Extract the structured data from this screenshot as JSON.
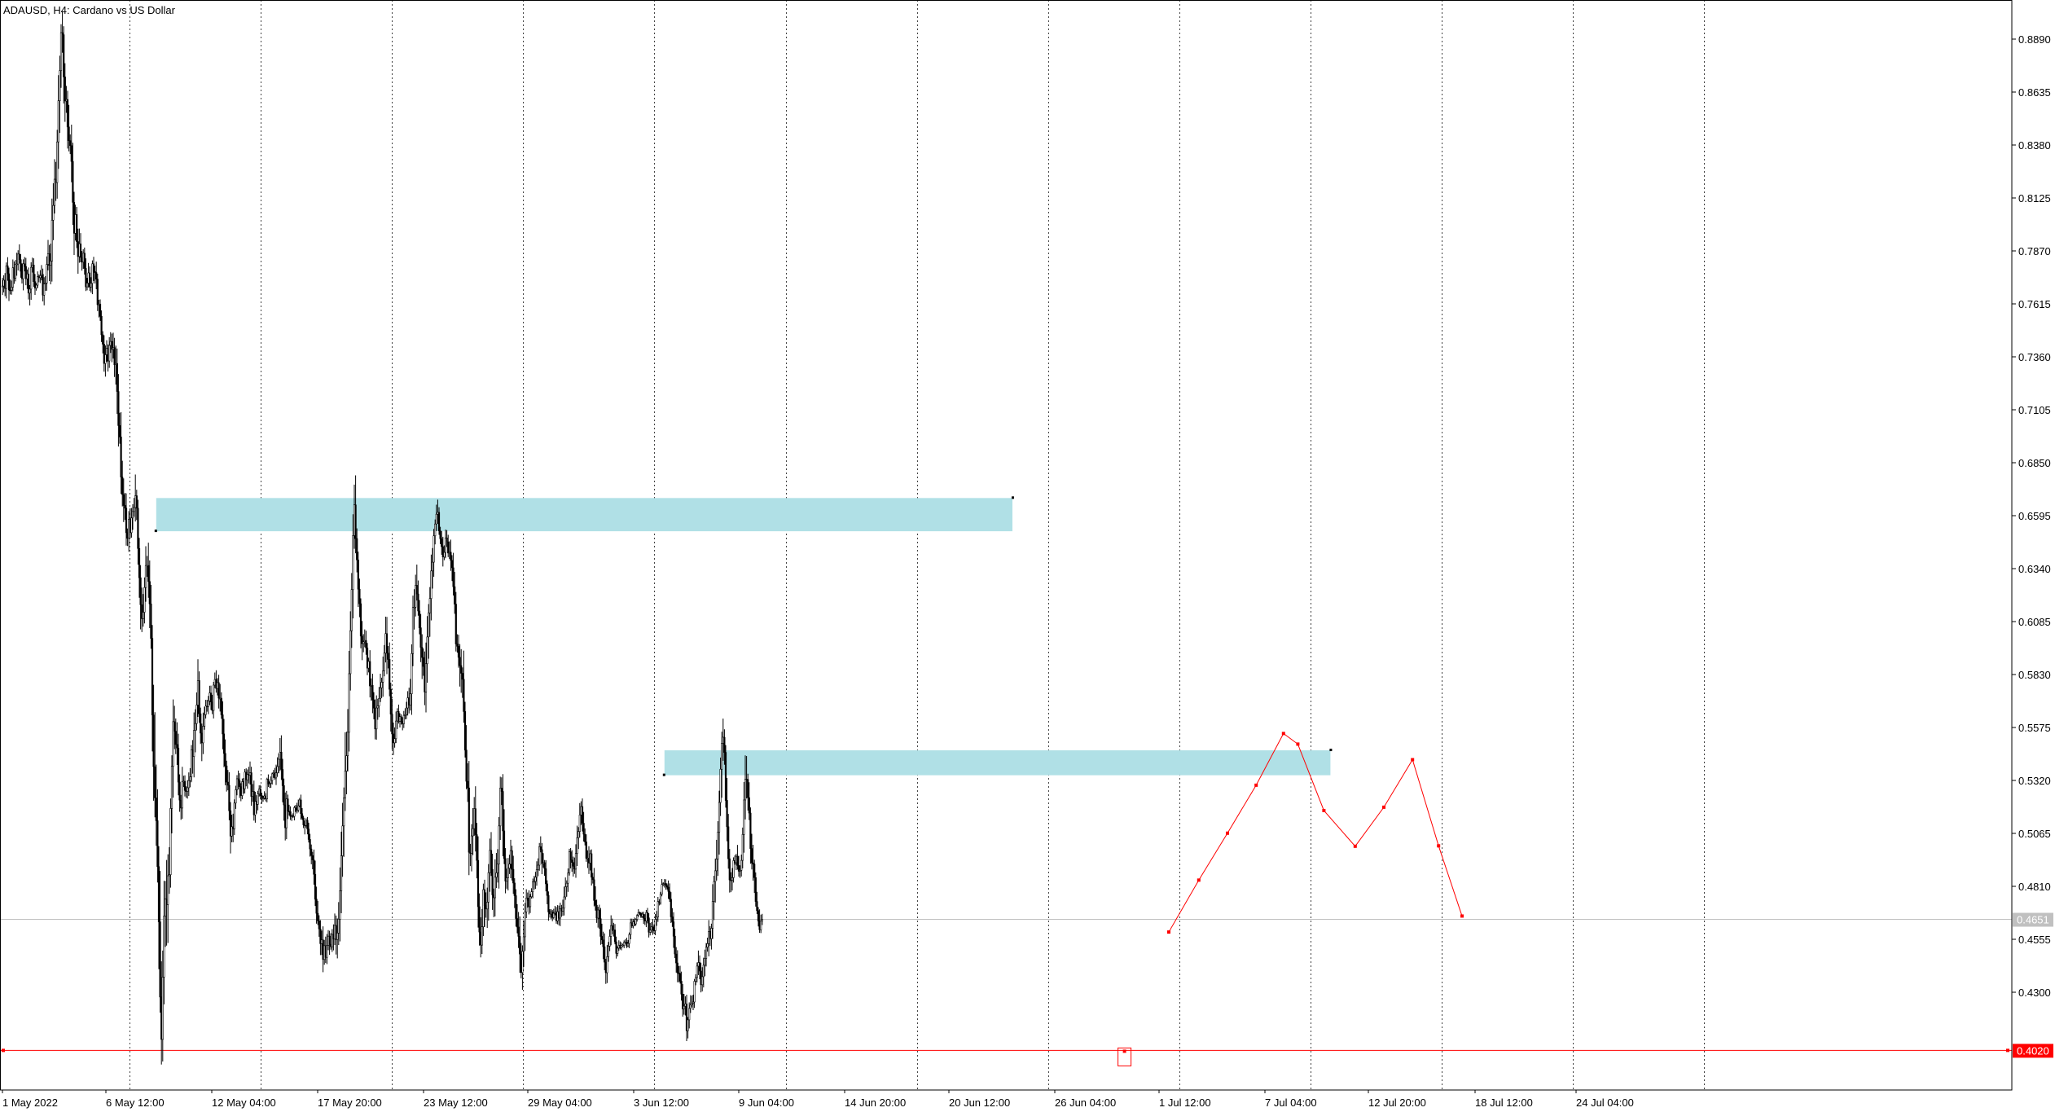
{
  "chart_data": {
    "type": "candlestick",
    "title": "ADAUSD, H4:  Cardano vs US Dollar",
    "ylim": [
      0.3805,
      0.9035
    ],
    "y_ticks": [
      "0.8890",
      "0.8635",
      "0.8380",
      "0.8125",
      "0.7870",
      "0.7615",
      "0.7360",
      "0.7105",
      "0.6850",
      "0.6595",
      "0.6340",
      "0.6085",
      "0.5830",
      "0.5575",
      "0.5320",
      "0.5065",
      "0.4810",
      "0.4555",
      "0.4300"
    ],
    "x_ticks": [
      "1 May 2022",
      "6 May 12:00",
      "12 May 04:00",
      "17 May 20:00",
      "23 May 12:00",
      "29 May 04:00",
      "3 Jun 12:00",
      "9 Jun 04:00",
      "14 Jun 20:00",
      "20 Jun 12:00",
      "26 Jun 04:00",
      "1 Jul 12:00",
      "7 Jul 04:00",
      "12 Jul 20:00",
      "18 Jul 12:00",
      "24 Jul 04:00"
    ],
    "grid": "vertical dotted",
    "current_price": {
      "label": "0.4651",
      "value": 0.4651,
      "color": "#c0c0c0"
    },
    "support_line": {
      "label": "0.4020",
      "value": 0.402,
      "color": "#ff0000"
    },
    "zones": [
      {
        "name": "upper-supply-zone",
        "from_bar": 118,
        "to_bar": 775,
        "top": 0.668,
        "bottom": 0.652,
        "color": "#b0e0e6"
      },
      {
        "name": "lower-supply-zone",
        "from_bar": 508,
        "to_bar": 1019,
        "top": 0.5465,
        "bottom": 0.5345,
        "color": "#b0e0e6"
      }
    ],
    "zigzag": {
      "color": "#ff0000",
      "points": [
        [
          895,
          0.459
        ],
        [
          918,
          0.484
        ],
        [
          940,
          0.5066
        ],
        [
          962,
          0.5297
        ],
        [
          983,
          0.5546
        ],
        [
          994,
          0.5495
        ],
        [
          1014,
          0.5175
        ],
        [
          1038,
          0.5003
        ],
        [
          1060,
          0.5191
        ],
        [
          1082,
          0.542
        ],
        [
          1102,
          0.5005
        ],
        [
          1120,
          0.4667
        ]
      ]
    },
    "low_marker": {
      "bar": 861,
      "value": 0.4016,
      "color": "#ff0000"
    },
    "candles_ohlc_window": 4,
    "candles": [
      0.7701,
      0.7729,
      0.7689,
      0.7798,
      0.776,
      0.7682,
      0.7681,
      0.7695,
      0.7789,
      0.7739,
      0.7806,
      0.7807,
      0.7855,
      0.7828,
      0.7772,
      0.7736,
      0.7808,
      0.7795,
      0.7736,
      0.7759,
      0.7667,
      0.7686,
      0.7791,
      0.7802,
      0.7722,
      0.7691,
      0.7705,
      0.7746,
      0.7741,
      0.7751,
      0.7757,
      0.7657,
      0.7711,
      0.7715,
      0.7805,
      0.7857,
      0.7801,
      0.7821,
      0.8018,
      0.8089,
      0.8215,
      0.8199,
      0.8395,
      0.8593,
      0.8738,
      0.8921,
      0.8911,
      0.8708,
      0.8592,
      0.8599,
      0.8467,
      0.8401,
      0.8377,
      0.8301,
      0.8104,
      0.7955,
      0.8045,
      0.7915,
      0.7843,
      0.7904,
      0.7839,
      0.7816,
      0.7859,
      0.7786,
      0.7697,
      0.7715,
      0.7764,
      0.7696,
      0.7714,
      0.7808,
      0.7771,
      0.7766,
      0.7734,
      0.7611,
      0.7614,
      0.7555,
      0.7466,
      0.7421,
      0.7328,
      0.737,
      0.7401,
      0.734,
      0.7415,
      0.7434,
      0.7396,
      0.7404,
      0.7322,
      0.7328,
      0.7193,
      0.7029,
      0.6974,
      0.6781,
      0.6697,
      0.6644,
      0.6631,
      0.6513,
      0.6486,
      0.6578,
      0.6513,
      0.6584,
      0.6615,
      0.6634,
      0.6691,
      0.6631,
      0.6437,
      0.6296,
      0.6166,
      0.6099,
      0.613,
      0.6249,
      0.6355,
      0.6355,
      0.6278,
      0.617,
      0.6004,
      0.5635,
      0.5386,
      0.5236,
      0.5126,
      0.4905,
      0.4639,
      0.4277,
      0.4073,
      0.4373,
      0.4667,
      0.4749,
      0.4722,
      0.4861,
      0.4866,
      0.5185,
      0.5388,
      0.5603,
      0.5557,
      0.5493,
      0.5476,
      0.5312,
      0.5225,
      0.5187,
      0.5315,
      0.5316,
      0.5272,
      0.5267,
      0.5285,
      0.5319,
      0.5337,
      0.5468,
      0.5435,
      0.5561,
      0.5594,
      0.5683,
      0.5801,
      0.5641,
      0.5548,
      0.5501,
      0.5581,
      0.5637,
      0.5678,
      0.5675,
      0.5703,
      0.5741,
      0.5698,
      0.5657,
      0.5779,
      0.5806,
      0.5763,
      0.5791,
      0.5716,
      0.5716,
      0.5636,
      0.5544,
      0.545,
      0.539,
      0.5312,
      0.5297,
      0.5174,
      0.5052,
      0.5097,
      0.5087,
      0.5211,
      0.5275,
      0.5328,
      0.5318,
      0.529,
      0.5247,
      0.5314,
      0.528,
      0.536,
      0.5323,
      0.5349,
      0.5345,
      0.5357,
      0.5243,
      0.5267,
      0.5154,
      0.5219,
      0.5205,
      0.5255,
      0.5279,
      0.5247,
      0.5236,
      0.5236,
      0.5245,
      0.5231,
      0.5326,
      0.5303,
      0.5306,
      0.532,
      0.5352,
      0.5356,
      0.5332,
      0.5357,
      0.5387,
      0.5422,
      0.5456,
      0.5373,
      0.5295,
      0.5202,
      0.5092,
      0.5231,
      0.5172,
      0.5169,
      0.5147,
      0.515,
      0.5147,
      0.5189,
      0.5191,
      0.5177,
      0.5198,
      0.5226,
      0.516,
      0.5139,
      0.5106,
      0.5103,
      0.5128,
      0.5086,
      0.5036,
      0.499,
      0.4958,
      0.4937,
      0.4868,
      0.4748,
      0.468,
      0.4644,
      0.4605,
      0.4534,
      0.4552,
      0.4458,
      0.4524,
      0.4468,
      0.4526,
      0.457,
      0.4531,
      0.4519,
      0.4579,
      0.4556,
      0.4622,
      0.4554,
      0.4585,
      0.4652,
      0.4788,
      0.4957,
      0.5101,
      0.5236,
      0.5365,
      0.5439,
      0.5552,
      0.5834,
      0.6041,
      0.6239,
      0.6499,
      0.6647,
      0.6485,
      0.6382,
      0.6241,
      0.6171,
      0.6015,
      0.5979,
      0.5988,
      0.5994,
      0.5958,
      0.5861,
      0.5893,
      0.5775,
      0.5778,
      0.5708,
      0.5668,
      0.5568,
      0.5669,
      0.5679,
      0.5715,
      0.5766,
      0.5793,
      0.5847,
      0.5933,
      0.6027,
      0.5933,
      0.5903,
      0.5759,
      0.5639,
      0.5544,
      0.5501,
      0.5521,
      0.5606,
      0.5652,
      0.5605,
      0.5627,
      0.5605,
      0.5593,
      0.5633,
      0.5637,
      0.5669,
      0.5718,
      0.5683,
      0.5737,
      0.5931,
      0.6153,
      0.6154,
      0.626,
      0.6218,
      0.6136,
      0.6055,
      0.5961,
      0.5912,
      0.5869,
      0.5746,
      0.5882,
      0.6011,
      0.6127,
      0.6196,
      0.6329,
      0.6371,
      0.6498,
      0.6555,
      0.6602,
      0.6611,
      0.6522,
      0.6484,
      0.6446,
      0.6396,
      0.6418,
      0.6488,
      0.6469,
      0.6415,
      0.6419,
      0.638,
      0.6344,
      0.6253,
      0.6169,
      0.5977,
      0.5966,
      0.5913,
      0.5873,
      0.5836,
      0.5807,
      0.5652,
      0.5466,
      0.5316,
      0.5284,
      0.4974,
      0.4969,
      0.5053,
      0.5088,
      0.5184,
      0.5059,
      0.4935,
      0.4712,
      0.459,
      0.4527,
      0.4615,
      0.4794,
      0.4717,
      0.4701,
      0.4734,
      0.4876,
      0.4983,
      0.4892,
      0.4769,
      0.4755,
      0.4854,
      0.4875,
      0.4917,
      0.5101,
      0.5283,
      0.5267,
      0.5077,
      0.4944,
      0.4835,
      0.4851,
      0.4897,
      0.4917,
      0.4982,
      0.4892,
      0.4826,
      0.4765,
      0.4655,
      0.4614,
      0.4569,
      0.4484,
      0.4395,
      0.4497,
      0.4567,
      0.4687,
      0.4754,
      0.4743,
      0.4712,
      0.476,
      0.4784,
      0.4832,
      0.4834,
      0.4854,
      0.4891,
      0.4912,
      0.5001,
      0.4987,
      0.4919,
      0.4924,
      0.4895,
      0.4822,
      0.4766,
      0.4687,
      0.4677,
      0.4687,
      0.466,
      0.468,
      0.4685,
      0.4644,
      0.4688,
      0.4657,
      0.4703,
      0.4691,
      0.4705,
      0.4759,
      0.4808,
      0.4825,
      0.4874,
      0.4976,
      0.4937,
      0.4925,
      0.4907,
      0.4893,
      0.4968,
      0.5044,
      0.5074,
      0.5154,
      0.5194,
      0.5114,
      0.5061,
      0.5024,
      0.4945,
      0.4946,
      0.4922,
      0.4967,
      0.4854,
      0.4842,
      0.4742,
      0.4719,
      0.4657,
      0.4696,
      0.4654,
      0.4569,
      0.4552,
      0.4519,
      0.4445,
      0.4394,
      0.4471,
      0.4522,
      0.4569,
      0.4621,
      0.4599,
      0.46,
      0.4543,
      0.4487,
      0.4512,
      0.4526,
      0.4514,
      0.4526,
      0.4527,
      0.4541,
      0.4541,
      0.4523,
      0.4535,
      0.4578,
      0.4634,
      0.4619,
      0.4639,
      0.4629,
      0.4651,
      0.467,
      0.4683,
      0.4679,
      0.4665,
      0.4676,
      0.4656,
      0.4643,
      0.4684,
      0.4658,
      0.4589,
      0.4599,
      0.4615,
      0.4599,
      0.4597,
      0.4651,
      0.4662,
      0.4737,
      0.473,
      0.4772,
      0.4819,
      0.4823,
      0.4824,
      0.4814,
      0.4806,
      0.4786,
      0.4748,
      0.4663,
      0.4639,
      0.457,
      0.4484,
      0.4441,
      0.4393,
      0.4391,
      0.4353,
      0.4291,
      0.422,
      0.4233,
      0.4244,
      0.4115,
      0.4167,
      0.4222,
      0.4239,
      0.4247,
      0.4253,
      0.4353,
      0.4371,
      0.4426,
      0.4443,
      0.4402,
      0.4336,
      0.4375,
      0.443,
      0.4462,
      0.4517,
      0.4534,
      0.4593,
      0.4558,
      0.4608,
      0.4738,
      0.4833,
      0.4885,
      0.4941,
      0.5071,
      0.5214,
      0.5374,
      0.5499,
      0.5528,
      0.5455,
      0.5224,
      0.5097,
      0.4943,
      0.4841,
      0.4839,
      0.4852,
      0.4934,
      0.4924,
      0.4955,
      0.4911,
      0.4883,
      0.4887,
      0.4935,
      0.506,
      0.5226,
      0.5326,
      0.5325,
      0.5237,
      0.5163,
      0.4992,
      0.4923,
      0.4917,
      0.4852,
      0.4737,
      0.4693,
      0.4643,
      0.4601,
      0.4643,
      0.4651
    ]
  }
}
